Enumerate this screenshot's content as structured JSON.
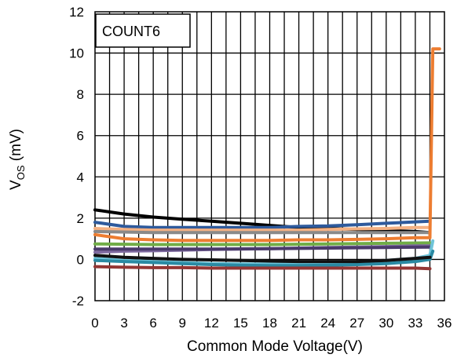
{
  "chart_data": {
    "type": "line",
    "title": "",
    "xlabel": "Common Mode Voltage(V)",
    "ylabel_main": "V",
    "ylabel_sub": "OS",
    "ylabel_unit": " (mV)",
    "xlim": [
      0,
      36
    ],
    "ylim": [
      -2,
      12
    ],
    "xticks": [
      0,
      3,
      6,
      9,
      12,
      15,
      18,
      21,
      24,
      27,
      30,
      33,
      36
    ],
    "yticks": [
      -2,
      0,
      2,
      4,
      6,
      8,
      10,
      12
    ],
    "x_grid_step": 1.5,
    "grid": true,
    "legend_label": "COUNT6",
    "legend_placement": "top-left",
    "series": [
      {
        "color": "#000000",
        "x": [
          0,
          3,
          6,
          9,
          12,
          15,
          18,
          21,
          24,
          27,
          30,
          33,
          34.5
        ],
        "y": [
          2.4,
          2.2,
          2.05,
          1.95,
          1.85,
          1.75,
          1.65,
          1.55,
          1.5,
          1.45,
          1.4,
          1.35,
          1.3
        ]
      },
      {
        "color": "#2e5a9c",
        "x": [
          0,
          3,
          6,
          9,
          12,
          15,
          18,
          21,
          24,
          27,
          30,
          33,
          34.5
        ],
        "y": [
          1.8,
          1.6,
          1.55,
          1.55,
          1.55,
          1.55,
          1.55,
          1.6,
          1.62,
          1.68,
          1.75,
          1.82,
          1.85
        ]
      },
      {
        "color": "#f4b183",
        "x": [
          0,
          3,
          6,
          9,
          12,
          15,
          18,
          21,
          24,
          27,
          30,
          33,
          34.5
        ],
        "y": [
          1.5,
          1.45,
          1.42,
          1.42,
          1.42,
          1.42,
          1.42,
          1.42,
          1.45,
          1.48,
          1.5,
          1.55,
          1.55
        ]
      },
      {
        "color": "#8a8a8a",
        "x": [
          0,
          6,
          12,
          18,
          24,
          30,
          34.5
        ],
        "y": [
          1.35,
          1.3,
          1.3,
          1.3,
          1.3,
          1.3,
          1.3
        ]
      },
      {
        "color": "#ed7d31",
        "x": [
          0,
          3,
          6,
          9,
          12,
          15,
          18,
          21,
          24,
          27,
          30,
          33,
          34.5,
          34.8,
          35.5
        ],
        "y": [
          1.2,
          1.0,
          0.95,
          0.92,
          0.92,
          0.92,
          0.92,
          0.95,
          0.95,
          0.97,
          1.0,
          1.05,
          1.05,
          10.2,
          10.2
        ]
      },
      {
        "color": "#70ad47",
        "x": [
          0,
          6,
          12,
          18,
          24,
          30,
          34.5
        ],
        "y": [
          0.75,
          0.72,
          0.72,
          0.72,
          0.75,
          0.78,
          0.8
        ]
      },
      {
        "color": "#7f6aa0",
        "x": [
          0,
          3,
          6,
          9,
          12,
          15,
          18,
          21,
          24,
          27,
          30,
          33,
          34.5
        ],
        "y": [
          0.35,
          0.4,
          0.42,
          0.45,
          0.48,
          0.5,
          0.52,
          0.55,
          0.58,
          0.6,
          0.62,
          0.65,
          0.65
        ]
      },
      {
        "color": "#4a3b6b",
        "x": [
          0,
          6,
          12,
          18,
          24,
          30,
          34.5
        ],
        "y": [
          0.5,
          0.5,
          0.5,
          0.52,
          0.55,
          0.58,
          0.6
        ]
      },
      {
        "color": "#6fc4d9",
        "x": [
          0,
          3,
          6,
          9,
          12,
          15,
          18,
          21,
          24,
          27,
          30,
          33,
          34.5,
          34.8
        ],
        "y": [
          0.05,
          -0.05,
          -0.1,
          -0.15,
          -0.2,
          -0.22,
          -0.22,
          -0.22,
          -0.2,
          -0.15,
          -0.05,
          0.05,
          0.2,
          0.9
        ]
      },
      {
        "color": "#2a8aa3",
        "x": [
          0,
          3,
          6,
          9,
          12,
          15,
          18,
          21,
          24,
          27,
          30,
          33,
          34.5,
          34.8
        ],
        "y": [
          -0.05,
          -0.1,
          -0.15,
          -0.2,
          -0.25,
          -0.28,
          -0.3,
          -0.3,
          -0.28,
          -0.25,
          -0.2,
          -0.1,
          0.0,
          0.4
        ]
      },
      {
        "color": "#111111",
        "x": [
          0,
          3,
          6,
          9,
          12,
          15,
          18,
          21,
          24,
          27,
          30,
          33,
          34.5
        ],
        "y": [
          0.2,
          0.1,
          0.05,
          0.0,
          -0.02,
          -0.05,
          -0.08,
          -0.1,
          -0.1,
          -0.1,
          -0.05,
          0.05,
          0.1
        ]
      },
      {
        "color": "#943634",
        "x": [
          0,
          3,
          6,
          9,
          12,
          15,
          18,
          21,
          24,
          27,
          30,
          33,
          34.5
        ],
        "y": [
          -0.35,
          -0.38,
          -0.4,
          -0.4,
          -0.42,
          -0.42,
          -0.42,
          -0.42,
          -0.42,
          -0.42,
          -0.42,
          -0.42,
          -0.45
        ]
      }
    ]
  }
}
